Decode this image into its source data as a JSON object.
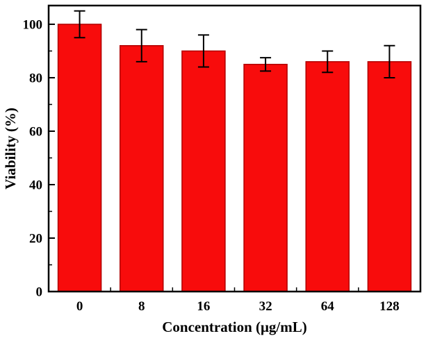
{
  "chart_data": {
    "type": "bar",
    "title": "",
    "xlabel": "Concentration (μg/mL)",
    "ylabel": "Viability (%)",
    "categories": [
      "0",
      "8",
      "16",
      "32",
      "64",
      "128"
    ],
    "values": [
      100,
      92,
      90,
      85,
      86,
      86
    ],
    "errors": [
      5,
      6,
      6,
      2.5,
      4,
      6
    ],
    "ylim": [
      0,
      107
    ],
    "yticks": [
      0,
      20,
      40,
      60,
      80,
      100
    ],
    "minor_step": 10,
    "grid": false,
    "legend": "none",
    "bar_color": "#f80c0c",
    "bar_edge_color": "#b00000",
    "error_bar_color": "#000000",
    "axis_color": "#000000",
    "background_color": "#ffffff"
  }
}
